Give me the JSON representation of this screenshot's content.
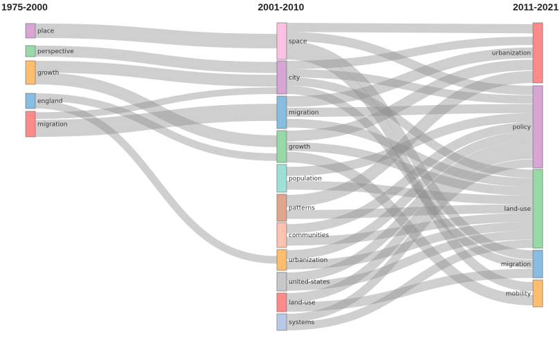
{
  "periods": [
    "1975-2000",
    "2001-2010",
    "2011-2021"
  ],
  "columns": [
    [
      {
        "id": "c0-place",
        "label": "place",
        "color": "#d7a6d7"
      },
      {
        "id": "c0-perspective",
        "label": "perspective",
        "color": "#98d9a8"
      },
      {
        "id": "c0-growth",
        "label": "growth",
        "color": "#ffbd6e"
      },
      {
        "id": "c0-england",
        "label": "england",
        "color": "#87bde0"
      },
      {
        "id": "c0-migration",
        "label": "migration",
        "color": "#ff8a8a"
      }
    ],
    [
      {
        "id": "c1-space",
        "label": "space",
        "color": "#ffc1e2"
      },
      {
        "id": "c1-city",
        "label": "city",
        "color": "#d7a6d7"
      },
      {
        "id": "c1-migration",
        "label": "migration",
        "color": "#87bde0"
      },
      {
        "id": "c1-growth",
        "label": "growth",
        "color": "#98d9a8"
      },
      {
        "id": "c1-population",
        "label": "population",
        "color": "#9ee0d5"
      },
      {
        "id": "c1-patterns",
        "label": "patterns",
        "color": "#e0a68a"
      },
      {
        "id": "c1-communities",
        "label": "communities",
        "color": "#ffc2b0"
      },
      {
        "id": "c1-urbanization",
        "label": "urbanization",
        "color": "#ffbd6e"
      },
      {
        "id": "c1-united-states",
        "label": "united-states",
        "color": "#c8c8c8"
      },
      {
        "id": "c1-land-use",
        "label": "land-use",
        "color": "#ff8a8a"
      },
      {
        "id": "c1-systems",
        "label": "systems",
        "color": "#b9c8e6"
      }
    ],
    [
      {
        "id": "c2-urbanization",
        "label": "urbanization",
        "color": "#ff8a8a"
      },
      {
        "id": "c2-policy",
        "label": "policy",
        "color": "#d7a6d7"
      },
      {
        "id": "c2-land-use",
        "label": "land-use",
        "color": "#98d9a8"
      },
      {
        "id": "c2-migration",
        "label": "migration",
        "color": "#87bde0"
      },
      {
        "id": "c2-mobility",
        "label": "mobility",
        "color": "#ffbd6e"
      }
    ]
  ],
  "links": [
    {
      "source": "c0-place",
      "target": "c1-space",
      "value": 2
    },
    {
      "source": "c0-perspective",
      "target": "c1-city",
      "value": 2
    },
    {
      "source": "c0-growth",
      "target": "c1-city",
      "value": 2
    },
    {
      "source": "c0-growth",
      "target": "c1-growth",
      "value": 2
    },
    {
      "source": "c0-england",
      "target": "c1-growth",
      "value": 1
    },
    {
      "source": "c0-england",
      "target": "c1-urbanization",
      "value": 1
    },
    {
      "source": "c0-migration",
      "target": "c1-city",
      "value": 1
    },
    {
      "source": "c0-migration",
      "target": "c1-migration",
      "value": 2
    },
    {
      "source": "c1-space",
      "target": "c2-urbanization",
      "value": 1
    },
    {
      "source": "c1-space",
      "target": "c2-policy",
      "value": 1
    },
    {
      "source": "c1-space",
      "target": "c2-migration",
      "value": 1
    },
    {
      "source": "c1-space",
      "target": "c2-mobility",
      "value": 1
    },
    {
      "source": "c1-city",
      "target": "c2-urbanization",
      "value": 1
    },
    {
      "source": "c1-city",
      "target": "c2-policy",
      "value": 1
    },
    {
      "source": "c1-city",
      "target": "c2-land-use",
      "value": 1
    },
    {
      "source": "c1-city",
      "target": "c2-migration",
      "value": 1
    },
    {
      "source": "c1-migration",
      "target": "c2-urbanization",
      "value": 1
    },
    {
      "source": "c1-migration",
      "target": "c2-policy",
      "value": 1
    },
    {
      "source": "c1-migration",
      "target": "c2-land-use",
      "value": 1
    },
    {
      "source": "c1-growth",
      "target": "c2-urbanization",
      "value": 1
    },
    {
      "source": "c1-growth",
      "target": "c2-land-use",
      "value": 1
    },
    {
      "source": "c1-growth",
      "target": "c2-mobility",
      "value": 1
    },
    {
      "source": "c1-population",
      "target": "c2-policy",
      "value": 1
    },
    {
      "source": "c1-population",
      "target": "c2-land-use",
      "value": 1
    },
    {
      "source": "c1-patterns",
      "target": "c2-urbanization",
      "value": 1
    },
    {
      "source": "c1-patterns",
      "target": "c2-land-use",
      "value": 1
    },
    {
      "source": "c1-communities",
      "target": "c2-policy",
      "value": 1
    },
    {
      "source": "c1-communities",
      "target": "c2-land-use",
      "value": 1
    },
    {
      "source": "c1-urbanization",
      "target": "c2-policy",
      "value": 1
    },
    {
      "source": "c1-urbanization",
      "target": "c2-land-use",
      "value": 1
    },
    {
      "source": "c1-united-states",
      "target": "c2-policy",
      "value": 1
    },
    {
      "source": "c1-united-states",
      "target": "c2-land-use",
      "value": 1
    },
    {
      "source": "c1-land-use",
      "target": "c2-policy",
      "value": 1
    },
    {
      "source": "c1-land-use",
      "target": "c2-migration",
      "value": 1
    },
    {
      "source": "c1-systems",
      "target": "c2-policy",
      "value": 1
    },
    {
      "source": "c1-systems",
      "target": "c2-land-use",
      "value": 1
    }
  ]
}
